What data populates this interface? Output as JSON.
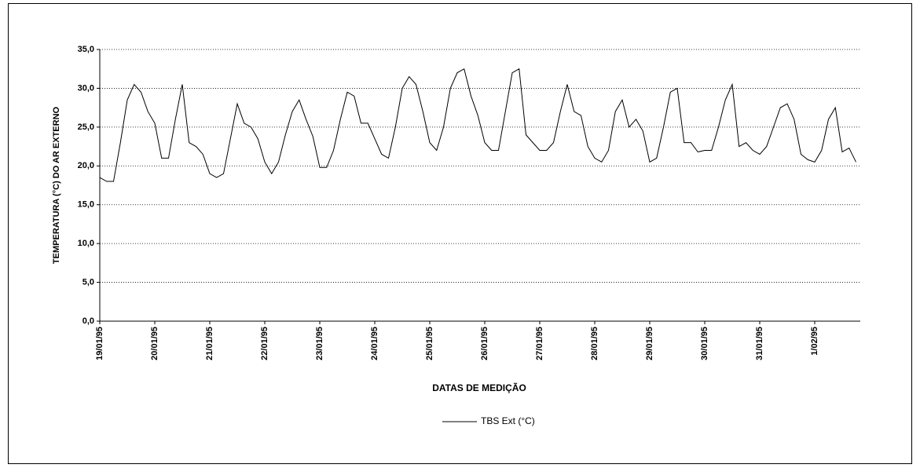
{
  "chart_data": {
    "type": "line",
    "ylabel": "TEMPERATURA (°C) DO AR EXTERNO",
    "xlabel": "DATAS DE MEDIÇÃO",
    "categories": [
      "19/01/95",
      null,
      null,
      null,
      null,
      null,
      null,
      null,
      "20/01/95",
      null,
      null,
      null,
      null,
      null,
      null,
      null,
      "21/01/95",
      null,
      null,
      null,
      null,
      null,
      null,
      null,
      "22/01/95",
      null,
      null,
      null,
      null,
      null,
      null,
      null,
      "23/01/95",
      null,
      null,
      null,
      null,
      null,
      null,
      null,
      "24/01/95",
      null,
      null,
      null,
      null,
      null,
      null,
      null,
      "25/01/95",
      null,
      null,
      null,
      null,
      null,
      null,
      null,
      "26/01/95",
      null,
      null,
      null,
      null,
      null,
      null,
      null,
      "27/01/95",
      null,
      null,
      null,
      null,
      null,
      null,
      null,
      "28/01/95",
      null,
      null,
      null,
      null,
      null,
      null,
      null,
      "29/01/95",
      null,
      null,
      null,
      null,
      null,
      null,
      null,
      "30/01/95",
      null,
      null,
      null,
      null,
      null,
      null,
      null,
      "31/01/95",
      null,
      null,
      null,
      null,
      null,
      null,
      null,
      "1/02/95",
      null,
      null,
      null,
      null,
      null,
      null
    ],
    "series": [
      {
        "name": "TBS Ext (°C)",
        "color": "#000000",
        "values": [
          18.5,
          18,
          18,
          23,
          28.5,
          30.5,
          29.5,
          27,
          25.5,
          21,
          21,
          26,
          30.5,
          23,
          22.5,
          21.5,
          19,
          18.5,
          19,
          23.5,
          28,
          25.5,
          25,
          23.5,
          20.5,
          19,
          20.5,
          24,
          27,
          28.5,
          26,
          23.8,
          19.8,
          19.8,
          22,
          26,
          29.5,
          29,
          25.5,
          25.5,
          23.5,
          21.5,
          21,
          25,
          30,
          31.5,
          30.5,
          27,
          23,
          22,
          25,
          30,
          32,
          32.5,
          29,
          26.5,
          23,
          22,
          22,
          27,
          32,
          32.5,
          24,
          23,
          22,
          22,
          23,
          27,
          30.5,
          27,
          26.5,
          22.5,
          21,
          20.5,
          22,
          27,
          28.5,
          25,
          26,
          24.5,
          20.5,
          21,
          25,
          29.5,
          30,
          23,
          23,
          21.8,
          22,
          22,
          25,
          28.5,
          30.5,
          22.5,
          23,
          22,
          21.5,
          22.5,
          25,
          27.5,
          28,
          26,
          21.5,
          20.8,
          20.5,
          22,
          26,
          27.5,
          21.8,
          22.3,
          20.5
        ]
      }
    ],
    "ylim": [
      0,
      35
    ],
    "yticks": [
      {
        "value": 0,
        "label": "0,0"
      },
      {
        "value": 5,
        "label": "5,0"
      },
      {
        "value": 10,
        "label": "10,0"
      },
      {
        "value": 15,
        "label": "15,0"
      },
      {
        "value": 20,
        "label": "20,0"
      },
      {
        "value": 25,
        "label": "25,0"
      },
      {
        "value": 30,
        "label": "30,0"
      },
      {
        "value": 35,
        "label": "35,0"
      }
    ],
    "grid": true,
    "legend": "bottom"
  }
}
